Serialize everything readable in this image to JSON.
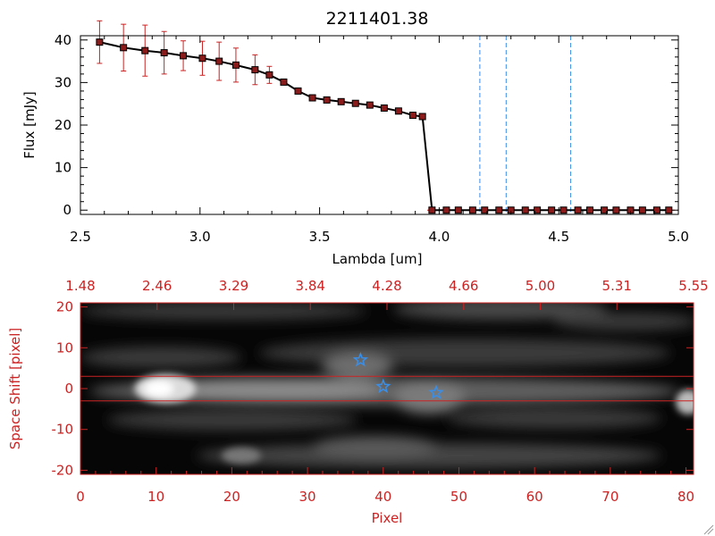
{
  "chart_data": [
    {
      "type": "line",
      "title": "2211401.38",
      "xlabel": "Lambda [um]",
      "ylabel": "Flux [mJy]",
      "xlim": [
        2.5,
        5.0
      ],
      "ylim": [
        -1,
        41
      ],
      "x_ticks": [
        "2.5",
        "3.0",
        "3.5",
        "4.0",
        "4.5",
        "5.0"
      ],
      "y_ticks": [
        "0",
        "10",
        "20",
        "30",
        "40"
      ],
      "colors": {
        "line": "#000000",
        "marker": "#8b1a1a",
        "error": "#cc2222",
        "vline": "#3a8ee6",
        "zero": "#cc2222"
      },
      "series": [
        {
          "x": [
            2.58,
            2.68,
            2.77,
            2.85,
            2.93,
            3.01,
            3.08,
            3.15,
            3.23,
            3.29,
            3.35,
            3.41,
            3.47,
            3.53,
            3.59,
            3.65,
            3.71,
            3.77,
            3.83,
            3.89,
            3.93,
            3.97,
            4.03,
            4.08,
            4.14,
            4.19,
            4.25,
            4.3,
            4.36,
            4.41,
            4.47,
            4.52,
            4.58,
            4.63,
            4.69,
            4.74,
            4.8,
            4.85,
            4.91,
            4.96
          ],
          "y": [
            39.5,
            38.2,
            37.5,
            37.0,
            36.3,
            35.7,
            35.0,
            34.1,
            33.0,
            31.8,
            30.1,
            28.0,
            26.4,
            25.9,
            25.5,
            25.1,
            24.7,
            24.0,
            23.3,
            22.3,
            22.0,
            0,
            0,
            0,
            0,
            0,
            0,
            0,
            0,
            0,
            0,
            0,
            0,
            0,
            0,
            0,
            0,
            0,
            0,
            0
          ],
          "err": [
            5.0,
            5.5,
            6.0,
            5.0,
            3.5,
            4.0,
            4.5,
            4.0,
            3.5,
            2.0,
            0,
            0,
            0,
            0,
            0,
            0,
            0,
            0,
            0,
            0,
            0,
            0,
            0,
            0,
            0,
            0,
            0,
            0,
            0,
            0,
            0,
            0,
            0,
            0,
            0,
            0,
            0,
            0,
            0,
            0
          ]
        }
      ],
      "vlines": [
        4.17,
        4.28,
        4.55
      ]
    },
    {
      "type": "heatmap",
      "xlabel": "Pixel",
      "ylabel": "Space Shift [pixel]",
      "xlim": [
        0,
        81
      ],
      "ylim": [
        -21,
        21
      ],
      "x_ticks": [
        "0",
        "10",
        "20",
        "30",
        "40",
        "50",
        "60",
        "70",
        "80"
      ],
      "y_ticks": [
        "-20",
        "-10",
        "0",
        "10",
        "20"
      ],
      "top_ticks": [
        "1.48",
        "2.46",
        "3.29",
        "3.84",
        "4.28",
        "4.66",
        "5.00",
        "5.31",
        "5.55"
      ],
      "aperture_lines": [
        3,
        -3
      ],
      "stars": [
        {
          "x": 37,
          "y": 7
        },
        {
          "x": 40,
          "y": 0.5
        },
        {
          "x": 47,
          "y": -1
        }
      ],
      "colors": {
        "frame": "#cc2222",
        "star": "#3a8ee6"
      }
    }
  ]
}
